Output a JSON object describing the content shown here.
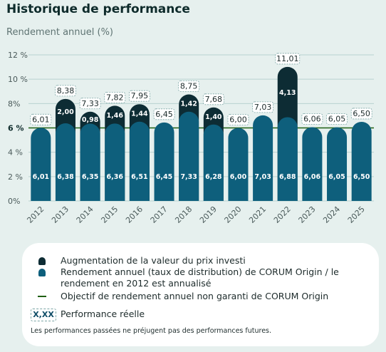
{
  "title": "Historique de performance",
  "subtitle": "Rendement annuel (%)",
  "colors": {
    "augmentation": "#0d2c34",
    "rendement": "#0e5f7c",
    "objectif": "#1f5f12",
    "grid": "#b8d2d0",
    "pill_border": "#7ca6a6"
  },
  "chart_data": {
    "type": "bar",
    "stacked": true,
    "categories": [
      "2012",
      "2013",
      "2014",
      "2015",
      "2016",
      "2017",
      "2018",
      "2019",
      "2020",
      "2021",
      "2022",
      "2023",
      "2024",
      "2025"
    ],
    "series": [
      {
        "name": "Rendement annuel (taux de distribution) de CORUM Origin / le rendement en 2012 est annualisé",
        "values": [
          6.01,
          6.38,
          6.35,
          6.36,
          6.51,
          6.45,
          7.33,
          6.28,
          6.0,
          7.03,
          6.88,
          6.06,
          6.05,
          6.5
        ],
        "labels": [
          "6,01",
          "6,38",
          "6,35",
          "6,36",
          "6,51",
          "6,45",
          "7,33",
          "6,28",
          "6,00",
          "7,03",
          "6,88",
          "6,06",
          "6,05",
          "6,50"
        ]
      },
      {
        "name": "Augmentation de la valeur du prix investi",
        "values": [
          0,
          2.0,
          0.98,
          1.46,
          1.44,
          0,
          1.42,
          1.4,
          0,
          0,
          4.13,
          0,
          0,
          0
        ],
        "labels": [
          "",
          "2,00",
          "0,98",
          "1,46",
          "1,44",
          "",
          "1,42",
          "1,40",
          "",
          "",
          "4,13",
          "",
          "",
          ""
        ]
      }
    ],
    "totals": [
      6.01,
      8.38,
      7.33,
      7.82,
      7.95,
      6.45,
      8.75,
      7.68,
      6.0,
      7.03,
      11.01,
      6.06,
      6.05,
      6.5
    ],
    "total_labels": [
      "6,01",
      "8,38",
      "7,33",
      "7,82",
      "7,95",
      "6,45",
      "8,75",
      "7,68",
      "6,00",
      "7,03",
      "11,01",
      "6,06",
      "6,05",
      "6,50"
    ],
    "yticks": [
      0,
      2,
      4,
      6,
      8,
      10,
      12
    ],
    "ytick_labels": [
      "0%",
      "2 %",
      "4 %",
      "6 %",
      "8%",
      "10 %",
      "12 %"
    ],
    "ylim": [
      0,
      12
    ],
    "target": 6,
    "grid": true
  },
  "legend": {
    "items": [
      "Augmentation de la valeur du prix investi",
      "Rendement annuel (taux de distribution) de CORUM Origin / le rendement en 2012 est annualisé",
      "Objectif de rendement annuel non garanti de CORUM Origin"
    ],
    "perf_box": "X,XX",
    "perf_label": "Performance réelle",
    "note": "Les performances passées ne préjugent pas des performances futures."
  }
}
